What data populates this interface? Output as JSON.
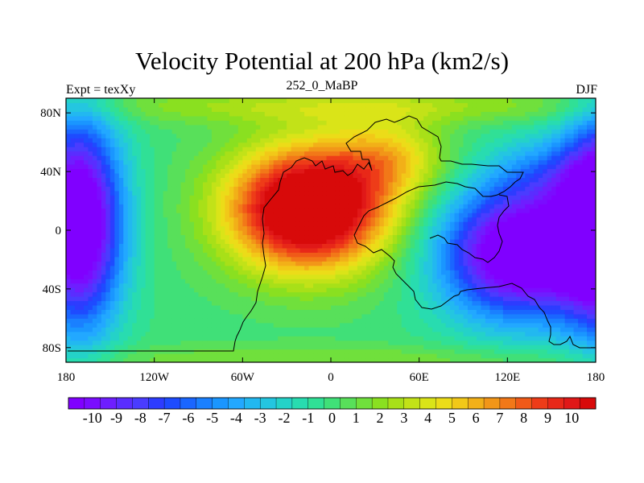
{
  "header": {
    "title": "Velocity Potential at 200 hPa (km2/s)",
    "left": "Expt = texXy",
    "center": "252_0_MaBP",
    "right": "DJF"
  },
  "axes": {
    "x_ticks": [
      "180",
      "120W",
      "60W",
      "0",
      "60E",
      "120E",
      "180"
    ],
    "x_values": [
      -180,
      -120,
      -60,
      0,
      60,
      120,
      180
    ],
    "y_ticks": [
      "80N",
      "40N",
      "0",
      "40S",
      "80S"
    ],
    "y_values": [
      80,
      40,
      0,
      -40,
      -80
    ],
    "lon_range": [
      -180,
      180
    ],
    "lat_range": [
      -90,
      90
    ]
  },
  "colorbar": {
    "labels": [
      "-10",
      "-9",
      "-8",
      "-7",
      "-6",
      "-5",
      "-4",
      "-3",
      "-2",
      "-1",
      "0",
      "1",
      "2",
      "3",
      "4",
      "5",
      "6",
      "7",
      "8",
      "9",
      "10"
    ],
    "colors": [
      "#8000ff",
      "#7a0cff",
      "#6e1eff",
      "#5a2dff",
      "#4a3cff",
      "#2d3cff",
      "#1e4bff",
      "#1a66ff",
      "#1a80ff",
      "#1a96ff",
      "#22a8ff",
      "#22b8f0",
      "#24c6e0",
      "#24d2c8",
      "#28dcb0",
      "#30e096",
      "#40e078",
      "#58e05a",
      "#70e03c",
      "#8ae020",
      "#a8e018",
      "#c2e218",
      "#dae418",
      "#ecdc18",
      "#f2c818",
      "#f2b018",
      "#f29618",
      "#f27818",
      "#f05a18",
      "#ee3c18",
      "#e82818",
      "#e01818",
      "#d80a0a"
    ]
  },
  "chart_data": {
    "type": "heatmap",
    "title": "Velocity Potential at 200 hPa (km2/s)",
    "variable_units": "km2/s",
    "range": [
      -10,
      10
    ],
    "features": [
      {
        "name": "positive maximum",
        "value": 10,
        "lon": -20,
        "lat": 15
      },
      {
        "name": "negative minimum west",
        "value": -10,
        "lon": -165,
        "lat": 0
      },
      {
        "name": "negative minimum east",
        "value": -10,
        "lon": 130,
        "lat": -20
      }
    ]
  }
}
